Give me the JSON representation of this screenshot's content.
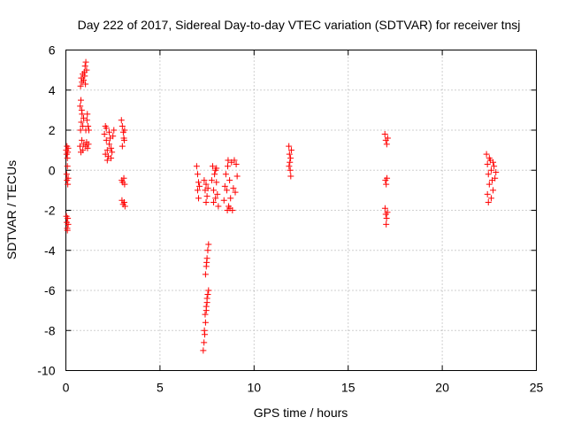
{
  "chart_data": {
    "type": "scatter",
    "title": "Day 222 of 2017, Sidereal Day-to-day VTEC variation (SDTVAR) for receiver tnsj",
    "xlabel": "GPS time / hours",
    "ylabel": "SDTVAR / TECUs",
    "xlim": [
      0,
      25
    ],
    "ylim": [
      -10,
      6
    ],
    "xticks": [
      0,
      5,
      10,
      15,
      20,
      25
    ],
    "yticks": [
      -10,
      -8,
      -6,
      -4,
      -2,
      0,
      2,
      4,
      6
    ],
    "grid": true,
    "marker": "+",
    "color": "#ff0000",
    "series": [
      {
        "name": "SDTVAR",
        "points": [
          [
            0.02,
            1.0
          ],
          [
            0.04,
            0.8
          ],
          [
            0.06,
            1.2
          ],
          [
            0.08,
            0.6
          ],
          [
            0.1,
            0.9
          ],
          [
            0.12,
            1.1
          ],
          [
            0.04,
            -0.2
          ],
          [
            0.06,
            -0.5
          ],
          [
            0.08,
            0.2
          ],
          [
            0.1,
            -0.7
          ],
          [
            0.12,
            -0.4
          ],
          [
            0.03,
            -2.3
          ],
          [
            0.05,
            -2.6
          ],
          [
            0.07,
            -2.9
          ],
          [
            0.1,
            -2.4
          ],
          [
            0.12,
            -2.7
          ],
          [
            0.08,
            -3.0
          ],
          [
            0.75,
            1.2
          ],
          [
            0.8,
            0.9
          ],
          [
            0.85,
            1.5
          ],
          [
            0.9,
            1.0
          ],
          [
            0.95,
            1.3
          ],
          [
            0.78,
            2.0
          ],
          [
            0.82,
            2.4
          ],
          [
            0.86,
            2.8
          ],
          [
            0.9,
            2.2
          ],
          [
            0.94,
            2.6
          ],
          [
            0.76,
            3.2
          ],
          [
            0.8,
            3.5
          ],
          [
            0.84,
            3.0
          ],
          [
            0.78,
            4.2
          ],
          [
            0.82,
            4.6
          ],
          [
            0.86,
            4.4
          ],
          [
            0.9,
            4.8
          ],
          [
            0.94,
            4.5
          ],
          [
            0.98,
            4.9
          ],
          [
            1.02,
            5.2
          ],
          [
            1.06,
            5.4
          ],
          [
            1.1,
            5.0
          ],
          [
            1.0,
            4.7
          ],
          [
            1.04,
            4.3
          ],
          [
            1.05,
            1.2
          ],
          [
            1.1,
            1.4
          ],
          [
            1.15,
            1.1
          ],
          [
            1.2,
            1.3
          ],
          [
            1.06,
            2.0
          ],
          [
            1.12,
            2.5
          ],
          [
            1.18,
            2.2
          ],
          [
            1.22,
            2.0
          ],
          [
            1.14,
            2.8
          ],
          [
            2.05,
            1.8
          ],
          [
            2.1,
            2.2
          ],
          [
            2.15,
            1.5
          ],
          [
            2.2,
            1.0
          ],
          [
            2.25,
            0.7
          ],
          [
            2.3,
            1.3
          ],
          [
            2.1,
            0.8
          ],
          [
            2.2,
            0.5
          ],
          [
            2.3,
            1.9
          ],
          [
            2.35,
            1.6
          ],
          [
            2.4,
            1.1
          ],
          [
            2.45,
            0.9
          ],
          [
            2.5,
            1.7
          ],
          [
            2.55,
            2.0
          ],
          [
            2.15,
            2.1
          ],
          [
            2.4,
            0.6
          ],
          [
            2.95,
            2.5
          ],
          [
            3.0,
            2.2
          ],
          [
            3.05,
            1.9
          ],
          [
            3.1,
            1.5
          ],
          [
            3.0,
            1.2
          ],
          [
            3.08,
            1.6
          ],
          [
            3.12,
            2.0
          ],
          [
            2.97,
            -0.5
          ],
          [
            3.02,
            -0.6
          ],
          [
            3.08,
            -0.4
          ],
          [
            3.12,
            -0.7
          ],
          [
            2.98,
            -1.5
          ],
          [
            3.04,
            -1.7
          ],
          [
            3.1,
            -1.6
          ],
          [
            3.14,
            -1.8
          ],
          [
            6.95,
            0.2
          ],
          [
            7.0,
            -0.2
          ],
          [
            7.05,
            -0.6
          ],
          [
            7.0,
            -1.0
          ],
          [
            7.05,
            -1.4
          ],
          [
            7.1,
            -0.8
          ],
          [
            7.35,
            -0.5
          ],
          [
            7.4,
            -1.0
          ],
          [
            7.45,
            -0.7
          ],
          [
            7.5,
            -1.3
          ],
          [
            7.55,
            -0.9
          ],
          [
            7.45,
            -1.6
          ],
          [
            7.3,
            -9.0
          ],
          [
            7.34,
            -8.6
          ],
          [
            7.38,
            -8.2
          ],
          [
            7.42,
            -7.6
          ],
          [
            7.46,
            -7.0
          ],
          [
            7.5,
            -6.6
          ],
          [
            7.54,
            -6.2
          ],
          [
            7.58,
            -6.0
          ],
          [
            7.5,
            -6.4
          ],
          [
            7.46,
            -6.8
          ],
          [
            7.4,
            -7.2
          ],
          [
            7.36,
            -8.0
          ],
          [
            7.42,
            -5.2
          ],
          [
            7.46,
            -4.8
          ],
          [
            7.5,
            -4.4
          ],
          [
            7.54,
            -4.0
          ],
          [
            7.58,
            -3.7
          ],
          [
            7.48,
            -4.6
          ],
          [
            7.75,
            -0.5
          ],
          [
            7.8,
            0.2
          ],
          [
            7.85,
            -1.0
          ],
          [
            7.9,
            -0.2
          ],
          [
            7.95,
            -1.4
          ],
          [
            8.0,
            -0.6
          ],
          [
            8.05,
            -1.2
          ],
          [
            8.1,
            -1.8
          ],
          [
            8.0,
            0.1
          ],
          [
            7.85,
            -1.6
          ],
          [
            7.95,
            0.0
          ],
          [
            8.4,
            -1.5
          ],
          [
            8.45,
            -0.8
          ],
          [
            8.5,
            -0.2
          ],
          [
            8.55,
            -1.0
          ],
          [
            8.6,
            0.2
          ],
          [
            8.65,
            -1.8
          ],
          [
            8.7,
            -0.5
          ],
          [
            8.75,
            -1.4
          ],
          [
            8.8,
            0.4
          ],
          [
            8.85,
            -2.0
          ],
          [
            8.9,
            -0.9
          ],
          [
            8.95,
            0.5
          ],
          [
            9.0,
            -1.1
          ],
          [
            9.05,
            0.3
          ],
          [
            9.1,
            -0.3
          ],
          [
            8.58,
            -2.0
          ],
          [
            8.72,
            -1.9
          ],
          [
            8.62,
            0.5
          ],
          [
            11.85,
            1.2
          ],
          [
            11.88,
            0.8
          ],
          [
            11.9,
            0.4
          ],
          [
            11.92,
            0.0
          ],
          [
            11.95,
            -0.3
          ],
          [
            11.98,
            1.0
          ],
          [
            11.86,
            0.2
          ],
          [
            11.94,
            0.6
          ],
          [
            16.95,
            1.8
          ],
          [
            17.0,
            1.5
          ],
          [
            17.05,
            1.3
          ],
          [
            17.1,
            1.6
          ],
          [
            16.98,
            -0.5
          ],
          [
            17.02,
            -0.7
          ],
          [
            17.06,
            -0.4
          ],
          [
            16.96,
            -1.9
          ],
          [
            17.0,
            -2.2
          ],
          [
            17.04,
            -2.4
          ],
          [
            17.08,
            -2.1
          ],
          [
            17.02,
            -2.7
          ],
          [
            22.35,
            0.8
          ],
          [
            22.4,
            0.3
          ],
          [
            22.45,
            -0.2
          ],
          [
            22.5,
            -0.7
          ],
          [
            22.4,
            -1.2
          ],
          [
            22.45,
            -1.6
          ],
          [
            22.55,
            0.5
          ],
          [
            22.6,
            0.0
          ],
          [
            22.65,
            -0.5
          ],
          [
            22.7,
            -1.0
          ],
          [
            22.75,
            0.2
          ],
          [
            22.8,
            -0.4
          ],
          [
            22.5,
            0.6
          ],
          [
            22.6,
            -1.4
          ],
          [
            22.7,
            0.4
          ],
          [
            22.85,
            -0.1
          ]
        ]
      }
    ]
  }
}
